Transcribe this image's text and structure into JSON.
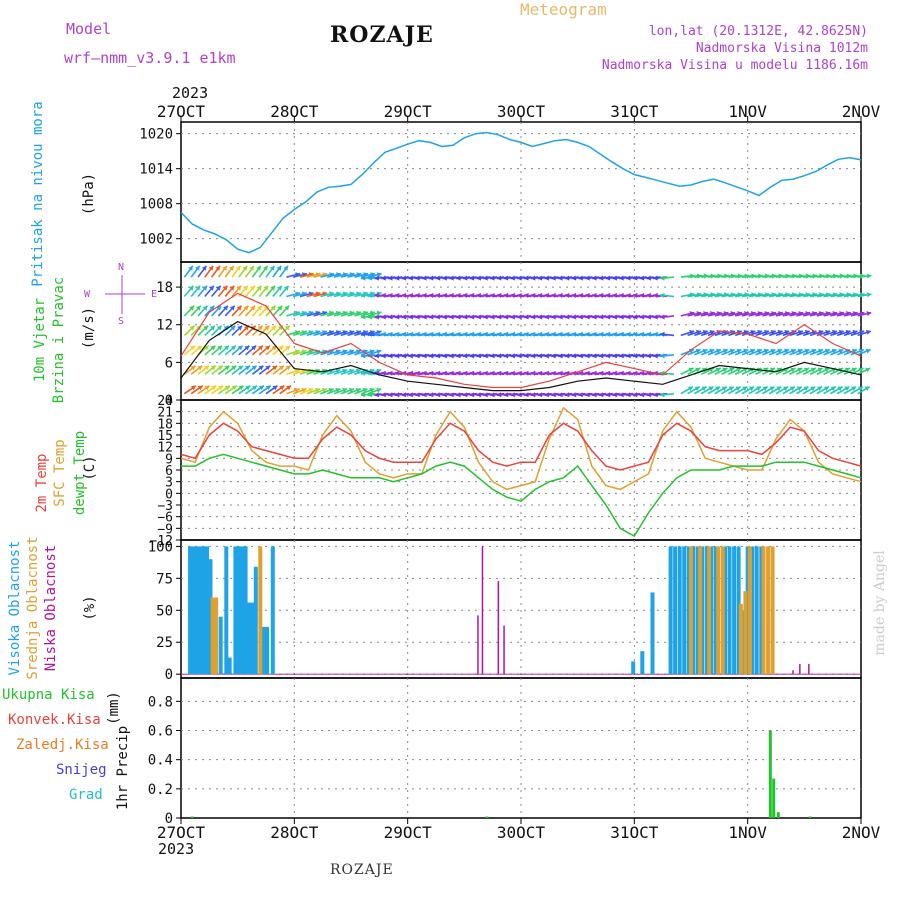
{
  "header": {
    "model_label": "Model",
    "model_name": "wrf—nmm_v3.9.1  e1km",
    "station_title": "ROZAJE",
    "product_label": "Meteogram",
    "location": "lon,lat (20.1312E, 42.8625N)",
    "elevation": "Nadmorska Visina 1012m",
    "model_elevation": "Nadmorska Visina u modelu 1186.16m"
  },
  "footer": {
    "station": "ROZAJE",
    "credit": "made by Angel",
    "year_top": "2023",
    "year_bottom": "2023"
  },
  "colors": {
    "pressure": "#1ea3e6",
    "temp2m": "#e8423a",
    "sfc_temp": "#e0a030",
    "dewpt": "#22c22a",
    "cloud_high": "#1ea3e6",
    "cloud_mid": "#e0a030",
    "cloud_low": "#b0139c",
    "precip_total": "#22c22a",
    "grid": "#888888",
    "label_purple": "#b040d0"
  },
  "chart_data": [
    {
      "id": "pressure",
      "type": "line",
      "title": "",
      "ylabel_main": "Pritisak na nivou mora",
      "ylabel_unit": "(hPa)",
      "x_ticks": [
        "27OCT",
        "28OCT",
        "29OCT",
        "30OCT",
        "31OCT",
        "1NOV",
        "2NOV"
      ],
      "ylim": [
        998,
        1022
      ],
      "y_ticks": [
        "1002",
        "1008",
        "1014",
        "1020"
      ],
      "y_tick_values": [
        1002,
        1008,
        1014,
        1020
      ],
      "grid": true,
      "x_days": [
        0,
        0.1,
        0.2,
        0.3,
        0.4,
        0.5,
        0.6,
        0.7,
        0.8,
        0.9,
        1.0,
        1.1,
        1.2,
        1.3,
        1.4,
        1.5,
        1.6,
        1.7,
        1.8,
        1.9,
        2.0,
        2.1,
        2.2,
        2.3,
        2.4,
        2.5,
        2.6,
        2.7,
        2.8,
        2.9,
        3.0,
        3.1,
        3.2,
        3.3,
        3.4,
        3.5,
        3.6,
        3.7,
        3.8,
        3.9,
        4.0,
        4.1,
        4.2,
        4.3,
        4.4,
        4.5,
        4.6,
        4.7,
        4.8,
        4.9,
        5.0,
        5.1,
        5.2,
        5.3,
        5.4,
        5.5,
        5.6,
        5.7,
        5.8,
        5.9,
        6.0
      ],
      "series": [
        {
          "values": [
            1006.5,
            1004.5,
            1003.5,
            1002.8,
            1001.8,
            1000.2,
            999.6,
            1000.5,
            1003.0,
            1005.5,
            1007.0,
            1008.3,
            1010.0,
            1010.8,
            1011.0,
            1011.3,
            1013.0,
            1015.0,
            1016.8,
            1017.5,
            1018.2,
            1018.8,
            1018.5,
            1017.8,
            1018.0,
            1019.3,
            1020.0,
            1020.2,
            1019.8,
            1019.0,
            1018.5,
            1017.8,
            1018.3,
            1018.8,
            1019.0,
            1018.5,
            1017.8,
            1016.5,
            1015.2,
            1014.0,
            1013.0,
            1012.5,
            1012.0,
            1011.5,
            1011.0,
            1011.2,
            1011.8,
            1012.2,
            1011.6,
            1010.9,
            1010.2,
            1009.4,
            1010.8,
            1012.0,
            1012.2,
            1012.8,
            1013.5,
            1014.6,
            1015.6,
            1015.9,
            1015.5
          ]
        }
      ]
    },
    {
      "id": "wind",
      "type": "line",
      "title": "",
      "ylabel_main": "10m Vjetar",
      "ylabel_sub": "Brzina i Pravac",
      "ylabel_unit": "(m/s)",
      "compass_labels": [
        "N",
        "W",
        "E",
        "S"
      ],
      "ylim": [
        0,
        22
      ],
      "y_ticks": [
        "0",
        "6",
        "12",
        "18"
      ],
      "y_tick_values": [
        0,
        6,
        12,
        18
      ],
      "grid": true,
      "x_days": [
        0,
        0.25,
        0.5,
        0.75,
        1.0,
        1.25,
        1.5,
        1.75,
        2.0,
        2.25,
        2.5,
        2.75,
        3.0,
        3.25,
        3.5,
        3.75,
        4.0,
        4.25,
        4.5,
        4.75,
        5.0,
        5.25,
        5.5,
        5.75,
        6.0
      ],
      "series": [
        {
          "name": "speed",
          "values": [
            3.5,
            9.5,
            12.5,
            10.5,
            5.0,
            4.5,
            5.5,
            4.0,
            3.0,
            2.5,
            2.0,
            1.5,
            1.5,
            2.0,
            3.0,
            3.5,
            3.0,
            2.5,
            4.0,
            5.5,
            5.0,
            4.5,
            6.0,
            5.0,
            4.0
          ]
        },
        {
          "name": "gust",
          "values": [
            7.0,
            14.0,
            17.0,
            15.0,
            9.0,
            7.5,
            9.0,
            6.0,
            4.0,
            3.5,
            2.5,
            2.0,
            2.0,
            3.0,
            4.5,
            6.0,
            5.0,
            4.0,
            8.0,
            11.0,
            10.5,
            9.0,
            12.0,
            9.0,
            7.0
          ]
        }
      ]
    },
    {
      "id": "temperature",
      "type": "line",
      "title": "",
      "ylabel_lines": [
        "2m Temp",
        "SFC Temp",
        "dewpt Temp"
      ],
      "ylabel_unit": "(C)",
      "ylim": [
        -12,
        24
      ],
      "y_ticks": [
        "24",
        "21",
        "18",
        "15",
        "12",
        "9",
        "6",
        "3",
        "0",
        "−3",
        "−6",
        "−9",
        "−12"
      ],
      "y_tick_values": [
        24,
        21,
        18,
        15,
        12,
        9,
        6,
        3,
        0,
        -3,
        -6,
        -9,
        -12
      ],
      "grid": true,
      "x_days": [
        0,
        0.125,
        0.25,
        0.375,
        0.5,
        0.625,
        0.75,
        0.875,
        1.0,
        1.125,
        1.25,
        1.375,
        1.5,
        1.625,
        1.75,
        1.875,
        2.0,
        2.125,
        2.25,
        2.375,
        2.5,
        2.625,
        2.75,
        2.875,
        3.0,
        3.125,
        3.25,
        3.375,
        3.5,
        3.625,
        3.75,
        3.875,
        4.0,
        4.125,
        4.25,
        4.375,
        4.5,
        4.625,
        4.75,
        4.875,
        5.0,
        5.125,
        5.25,
        5.375,
        5.5,
        5.625,
        5.75,
        5.875,
        6.0
      ],
      "series": [
        {
          "name": "2m Temp",
          "values": [
            10,
            9,
            15,
            18,
            16,
            12,
            11,
            10,
            9,
            9,
            14,
            17,
            15,
            11,
            9,
            8,
            8,
            8,
            14,
            18,
            16,
            11,
            8,
            7,
            8,
            8,
            15,
            18,
            16,
            11,
            7,
            6,
            7,
            8,
            15,
            18,
            16,
            12,
            11,
            11,
            11,
            10,
            13,
            17,
            16,
            11,
            9,
            8,
            7
          ]
        },
        {
          "name": "SFC Temp",
          "values": [
            9,
            8,
            17,
            21,
            18,
            11,
            8,
            7,
            7,
            6,
            15,
            20,
            16,
            8,
            5,
            4,
            5,
            5,
            15,
            21,
            17,
            8,
            3,
            1,
            2,
            3,
            14,
            22,
            19,
            7,
            2,
            1,
            3,
            5,
            16,
            21,
            17,
            9,
            8,
            7,
            6,
            6,
            14,
            19,
            16,
            8,
            5,
            4,
            3
          ]
        },
        {
          "name": "dewpt Temp",
          "values": [
            7,
            7,
            9,
            10,
            9,
            8,
            7,
            6,
            5,
            5,
            6,
            5,
            4,
            4,
            4,
            3,
            4,
            5,
            7,
            8,
            7,
            4,
            1,
            -1,
            -2,
            1,
            3,
            4,
            7,
            2,
            -3,
            -9,
            -11,
            -5,
            0,
            4,
            6,
            6,
            6,
            7,
            7,
            7,
            8,
            8,
            8,
            7,
            6,
            5,
            4
          ]
        }
      ]
    },
    {
      "id": "clouds",
      "type": "bar",
      "title": "",
      "ylabel_lines": [
        "Visoka Oblacnost",
        "Srednja Oblacnost",
        "Niska Oblacnost"
      ],
      "ylabel_unit": "(%)",
      "ylim": [
        0,
        100
      ],
      "y_ticks": [
        "0",
        "25",
        "50",
        "75",
        "100"
      ],
      "y_tick_values": [
        0,
        25,
        50,
        75,
        100
      ],
      "grid": true,
      "series": [
        {
          "name": "Visoka Oblacnost",
          "x_days": [
            0.08,
            0.11,
            0.14,
            0.17,
            0.2,
            0.23,
            0.26,
            0.35,
            0.4,
            0.43,
            0.48,
            0.51,
            0.54,
            0.57,
            0.6,
            0.63,
            0.66,
            0.73,
            0.76,
            0.81,
            3.99,
            4.07,
            4.16,
            4.32,
            4.36,
            4.4,
            4.44,
            4.48,
            4.52,
            4.56,
            4.6,
            4.64,
            4.68,
            4.72,
            4.8,
            4.84,
            4.88,
            4.92,
            4.96,
            5.0,
            5.04,
            5.08,
            5.12
          ],
          "values": [
            100,
            100,
            100,
            100,
            100,
            100,
            90,
            45,
            100,
            13,
            100,
            100,
            100,
            100,
            56,
            56,
            84,
            37,
            37,
            100,
            10,
            18,
            64,
            100,
            100,
            100,
            100,
            100,
            100,
            100,
            100,
            100,
            100,
            100,
            100,
            100,
            100,
            100,
            50,
            100,
            100,
            100,
            100
          ]
        },
        {
          "name": "Srednja Oblacnost",
          "x_days": [
            0.28,
            0.31,
            0.7,
            4.5,
            4.58,
            4.66,
            4.74,
            4.78,
            4.94,
            4.98,
            5.02,
            5.14,
            5.18,
            5.22
          ],
          "values": [
            60,
            60,
            100,
            100,
            100,
            100,
            100,
            100,
            55,
            65,
            100,
            100,
            100,
            100
          ]
        },
        {
          "name": "Niska Oblacnost",
          "x_days": [
            2.62,
            2.66,
            2.8,
            2.85,
            5.4,
            5.46,
            5.54
          ],
          "values": [
            46,
            100,
            73,
            38,
            3,
            8,
            8
          ]
        }
      ]
    },
    {
      "id": "precip",
      "type": "bar",
      "title": "",
      "ylabel_main": "1hr Precip",
      "ylabel_unit": "(mm)",
      "legend": [
        "Ukupna Kisa",
        "Konvek.Kisa",
        "Zaledj.Kisa",
        "Snijeg",
        "Grad"
      ],
      "legend_colors": [
        "#22c22a",
        "#e8423a",
        "#e67e22",
        "#4040e0",
        "#20c0c0"
      ],
      "ylim": [
        0,
        0.96
      ],
      "y_ticks": [
        "0",
        "0.2",
        "0.4",
        "0.6",
        "0.8"
      ],
      "y_tick_values": [
        0,
        0.2,
        0.4,
        0.6,
        0.8
      ],
      "grid": true,
      "series": [
        {
          "name": "Ukupna Kisa",
          "x_days": [
            0.1,
            2.7,
            5.2,
            5.23,
            5.27,
            5.55
          ],
          "values": [
            0.01,
            0.01,
            0.6,
            0.27,
            0.04,
            0.01
          ]
        }
      ]
    }
  ]
}
